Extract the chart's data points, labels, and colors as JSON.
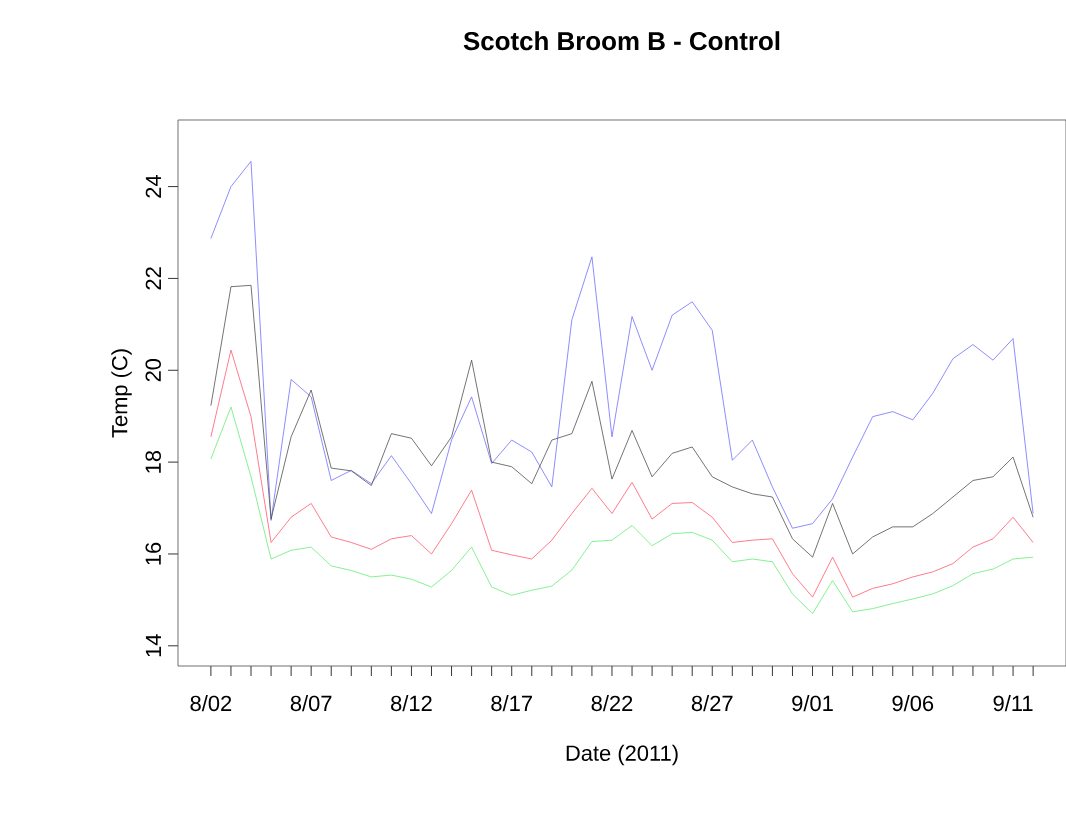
{
  "chart_data": {
    "type": "line",
    "title": "Scotch Broom B - Control",
    "xlabel": "Date (2011)",
    "ylabel": "Temp (C)",
    "x": [
      "2011-08-02",
      "2011-08-03",
      "2011-08-04",
      "2011-08-05",
      "2011-08-06",
      "2011-08-07",
      "2011-08-08",
      "2011-08-09",
      "2011-08-10",
      "2011-08-11",
      "2011-08-12",
      "2011-08-13",
      "2011-08-14",
      "2011-08-15",
      "2011-08-16",
      "2011-08-17",
      "2011-08-18",
      "2011-08-19",
      "2011-08-20",
      "2011-08-21",
      "2011-08-22",
      "2011-08-23",
      "2011-08-24",
      "2011-08-25",
      "2011-08-26",
      "2011-08-27",
      "2011-08-28",
      "2011-08-29",
      "2011-08-30",
      "2011-08-31",
      "2011-09-01",
      "2011-09-02",
      "2011-09-03",
      "2011-09-04",
      "2011-09-05",
      "2011-09-06",
      "2011-09-07",
      "2011-09-08",
      "2011-09-09",
      "2011-09-10",
      "2011-09-11",
      "2011-09-12"
    ],
    "series": [
      {
        "color": "#7070ff",
        "values": [
          22.87,
          24.0,
          24.55,
          16.73,
          19.8,
          19.42,
          17.6,
          17.82,
          17.53,
          18.14,
          17.53,
          16.88,
          18.48,
          19.42,
          17.97,
          18.48,
          18.22,
          17.46,
          21.1,
          22.47,
          18.55,
          21.17,
          20.0,
          21.2,
          21.49,
          20.87,
          18.04,
          18.48,
          17.46,
          16.56,
          16.66,
          17.2,
          18.11,
          18.99,
          19.1,
          18.92,
          19.5,
          20.25,
          20.56,
          20.22,
          20.69,
          16.88
        ]
      },
      {
        "color": "#505050",
        "values": [
          19.23,
          21.82,
          21.85,
          16.76,
          18.55,
          19.57,
          17.87,
          17.81,
          17.49,
          18.62,
          18.52,
          17.92,
          18.55,
          20.22,
          18.0,
          17.9,
          17.53,
          18.48,
          18.62,
          19.76,
          17.63,
          18.69,
          17.68,
          18.19,
          18.33,
          17.68,
          17.46,
          17.31,
          17.24,
          16.33,
          15.93,
          17.1,
          16.0,
          16.37,
          16.59,
          16.59,
          16.88,
          17.24,
          17.6,
          17.68,
          18.11,
          16.8
        ]
      },
      {
        "color": "#ff5a6e",
        "values": [
          18.55,
          20.44,
          18.99,
          16.25,
          16.8,
          17.1,
          16.37,
          16.25,
          16.1,
          16.33,
          16.4,
          16.0,
          16.66,
          17.39,
          16.08,
          15.98,
          15.89,
          16.3,
          16.88,
          17.43,
          16.88,
          17.56,
          16.76,
          17.1,
          17.12,
          16.8,
          16.25,
          16.3,
          16.33,
          15.57,
          15.06,
          15.93,
          15.06,
          15.25,
          15.35,
          15.5,
          15.61,
          15.79,
          16.15,
          16.33,
          16.8,
          16.25
        ]
      },
      {
        "color": "#66ee77",
        "values": [
          18.07,
          19.2,
          17.68,
          15.89,
          16.08,
          16.15,
          15.74,
          15.64,
          15.5,
          15.54,
          15.45,
          15.28,
          15.64,
          16.15,
          15.28,
          15.1,
          15.21,
          15.3,
          15.65,
          16.27,
          16.3,
          16.62,
          16.18,
          16.44,
          16.47,
          16.3,
          15.83,
          15.89,
          15.83,
          15.13,
          14.7,
          15.42,
          14.74,
          14.81,
          14.92,
          15.02,
          15.13,
          15.31,
          15.57,
          15.67,
          15.89,
          15.93
        ]
      }
    ],
    "xlim": [
      "2011-07-31T08:38",
      "2011-09-13T15:22"
    ],
    "ylim": [
      13.56,
      25.45
    ],
    "yticks": [
      14,
      16,
      18,
      20,
      22,
      24
    ],
    "xticks": [
      {
        "value": "2011-08-02",
        "label": "8/02"
      },
      {
        "value": "2011-08-03",
        "label": null
      },
      {
        "value": "2011-08-04",
        "label": null
      },
      {
        "value": "2011-08-05",
        "label": null
      },
      {
        "value": "2011-08-06",
        "label": null
      },
      {
        "value": "2011-08-07",
        "label": "8/07"
      },
      {
        "value": "2011-08-08",
        "label": null
      },
      {
        "value": "2011-08-09",
        "label": null
      },
      {
        "value": "2011-08-10",
        "label": null
      },
      {
        "value": "2011-08-11",
        "label": null
      },
      {
        "value": "2011-08-12",
        "label": "8/12"
      },
      {
        "value": "2011-08-13",
        "label": null
      },
      {
        "value": "2011-08-14",
        "label": null
      },
      {
        "value": "2011-08-15",
        "label": null
      },
      {
        "value": "2011-08-16",
        "label": null
      },
      {
        "value": "2011-08-17",
        "label": "8/17"
      },
      {
        "value": "2011-08-18",
        "label": null
      },
      {
        "value": "2011-08-19",
        "label": null
      },
      {
        "value": "2011-08-20",
        "label": null
      },
      {
        "value": "2011-08-21",
        "label": null
      },
      {
        "value": "2011-08-22",
        "label": "8/22"
      },
      {
        "value": "2011-08-23",
        "label": null
      },
      {
        "value": "2011-08-24",
        "label": null
      },
      {
        "value": "2011-08-25",
        "label": null
      },
      {
        "value": "2011-08-26",
        "label": null
      },
      {
        "value": "2011-08-27",
        "label": "8/27"
      },
      {
        "value": "2011-08-28",
        "label": null
      },
      {
        "value": "2011-08-29",
        "label": null
      },
      {
        "value": "2011-08-30",
        "label": null
      },
      {
        "value": "2011-08-31",
        "label": null
      },
      {
        "value": "2011-09-01",
        "label": "9/01"
      },
      {
        "value": "2011-09-02",
        "label": null
      },
      {
        "value": "2011-09-03",
        "label": null
      },
      {
        "value": "2011-09-04",
        "label": null
      },
      {
        "value": "2011-09-05",
        "label": null
      },
      {
        "value": "2011-09-06",
        "label": "9/06"
      },
      {
        "value": "2011-09-07",
        "label": null
      },
      {
        "value": "2011-09-08",
        "label": null
      },
      {
        "value": "2011-09-09",
        "label": null
      },
      {
        "value": "2011-09-10",
        "label": null
      },
      {
        "value": "2011-09-11",
        "label": "9/11"
      },
      {
        "value": "2011-09-12",
        "label": null
      }
    ]
  }
}
